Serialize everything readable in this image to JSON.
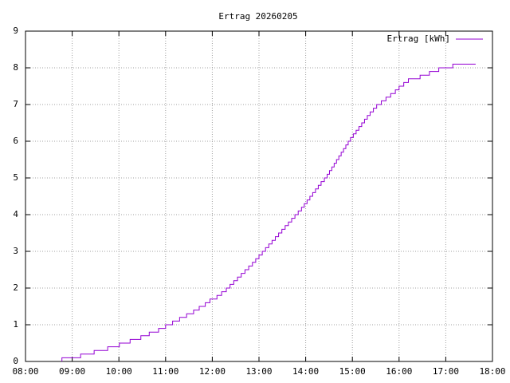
{
  "chart_data": {
    "type": "line",
    "title": "Ertrag 20260205",
    "step": "post",
    "grid": true,
    "legend": "top-right",
    "x": [
      8.78,
      8.78,
      9.18,
      9.47,
      9.76,
      10.01,
      10.24,
      10.47,
      10.65,
      10.85,
      11.0,
      11.15,
      11.3,
      11.45,
      11.6,
      11.72,
      11.85,
      11.95,
      12.1,
      12.2,
      12.3,
      12.38,
      12.46,
      12.54,
      12.62,
      12.7,
      12.78,
      12.86,
      12.93,
      13.0,
      13.07,
      13.14,
      13.21,
      13.28,
      13.35,
      13.42,
      13.49,
      13.56,
      13.63,
      13.7,
      13.77,
      13.84,
      13.91,
      13.97,
      14.03,
      14.09,
      14.15,
      14.21,
      14.27,
      14.33,
      14.4,
      14.46,
      14.51,
      14.56,
      14.61,
      14.66,
      14.71,
      14.76,
      14.81,
      14.86,
      14.91,
      14.96,
      15.02,
      15.08,
      15.14,
      15.2,
      15.26,
      15.32,
      15.38,
      15.45,
      15.52,
      15.62,
      15.72,
      15.82,
      15.92,
      16.0,
      16.1,
      16.2,
      16.45,
      16.65,
      16.85,
      17.15,
      17.64
    ],
    "series": [
      {
        "name": "Ertrag [kWh]",
        "color": "#9400d3",
        "values": [
          0,
          0.1,
          0.2,
          0.3,
          0.4,
          0.5,
          0.6,
          0.7,
          0.8,
          0.9,
          1.0,
          1.1,
          1.2,
          1.3,
          1.4,
          1.5,
          1.6,
          1.7,
          1.8,
          1.9,
          2.0,
          2.1,
          2.2,
          2.3,
          2.4,
          2.5,
          2.6,
          2.7,
          2.8,
          2.9,
          3.0,
          3.1,
          3.2,
          3.3,
          3.4,
          3.5,
          3.6,
          3.7,
          3.8,
          3.9,
          4.0,
          4.1,
          4.2,
          4.3,
          4.4,
          4.5,
          4.6,
          4.7,
          4.8,
          4.9,
          5.0,
          5.1,
          5.2,
          5.3,
          5.4,
          5.5,
          5.6,
          5.7,
          5.8,
          5.9,
          6.0,
          6.1,
          6.2,
          6.3,
          6.4,
          6.5,
          6.6,
          6.7,
          6.8,
          6.9,
          7.0,
          7.1,
          7.2,
          7.3,
          7.4,
          7.5,
          7.6,
          7.7,
          7.8,
          7.9,
          8.0,
          8.1,
          8.1
        ]
      }
    ],
    "xlim": [
      8,
      18
    ],
    "xticks": [
      {
        "value": 8,
        "label": "08:00"
      },
      {
        "value": 9,
        "label": "09:00"
      },
      {
        "value": 10,
        "label": "10:00"
      },
      {
        "value": 11,
        "label": "11:00"
      },
      {
        "value": 12,
        "label": "12:00"
      },
      {
        "value": 13,
        "label": "13:00"
      },
      {
        "value": 14,
        "label": "14:00"
      },
      {
        "value": 15,
        "label": "15:00"
      },
      {
        "value": 16,
        "label": "16:00"
      },
      {
        "value": 17,
        "label": "17:00"
      },
      {
        "value": 18,
        "label": "18:00"
      }
    ],
    "ylim": [
      0,
      9
    ],
    "yticks": [
      0,
      1,
      2,
      3,
      4,
      5,
      6,
      7,
      8,
      9
    ]
  }
}
